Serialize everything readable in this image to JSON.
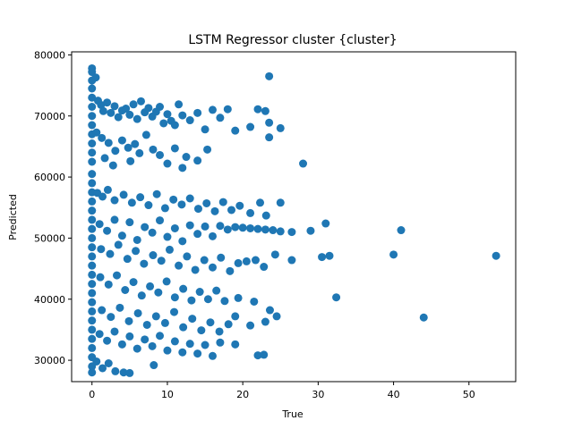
{
  "chart_data": {
    "type": "scatter",
    "title": "LSTM Regressor cluster {cluster}",
    "xlabel": "True",
    "ylabel": "Predicted",
    "xlim": [
      -2.7,
      56.2
    ],
    "ylim": [
      26500,
      80500
    ],
    "xticks": [
      0,
      10,
      20,
      30,
      40,
      50
    ],
    "yticks": [
      30000,
      40000,
      50000,
      60000,
      70000,
      80000
    ],
    "xtick_labels": [
      "0",
      "10",
      "20",
      "30",
      "40",
      "50"
    ],
    "ytick_labels": [
      "30000",
      "40000",
      "50000",
      "60000",
      "70000",
      "80000"
    ],
    "grid": false,
    "legend": false,
    "marker_color": "#1f77b4",
    "series": [
      {
        "points": [
          [
            0,
            77800
          ],
          [
            0,
            77200
          ],
          [
            0,
            75800
          ],
          [
            0,
            74500
          ],
          [
            0,
            73000
          ],
          [
            0,
            71500
          ],
          [
            0,
            70000
          ],
          [
            0,
            68500
          ],
          [
            0,
            67000
          ],
          [
            0,
            65500
          ],
          [
            0,
            64000
          ],
          [
            0,
            62500
          ],
          [
            0,
            60500
          ],
          [
            0,
            59000
          ],
          [
            0,
            57500
          ],
          [
            0,
            56000
          ],
          [
            0,
            54500
          ],
          [
            0,
            53000
          ],
          [
            0,
            51500
          ],
          [
            0,
            50000
          ],
          [
            0,
            48500
          ],
          [
            0,
            47000
          ],
          [
            0,
            45500
          ],
          [
            0,
            44000
          ],
          [
            0,
            42500
          ],
          [
            0,
            41000
          ],
          [
            0,
            39500
          ],
          [
            0,
            38000
          ],
          [
            0,
            36500
          ],
          [
            0,
            35000
          ],
          [
            0,
            33500
          ],
          [
            0,
            32000
          ],
          [
            0,
            30500
          ],
          [
            0,
            29000
          ],
          [
            0,
            28000
          ],
          [
            0.5,
            76300
          ],
          [
            0.8,
            72500
          ],
          [
            1.2,
            71800
          ],
          [
            1.5,
            70800
          ],
          [
            2,
            72200
          ],
          [
            2.5,
            70500
          ],
          [
            3,
            71600
          ],
          [
            3.5,
            69800
          ],
          [
            4,
            70900
          ],
          [
            4.5,
            71200
          ],
          [
            5,
            70200
          ],
          [
            5.5,
            71900
          ],
          [
            6,
            69500
          ],
          [
            6.5,
            72400
          ],
          [
            7,
            70600
          ],
          [
            7.5,
            71300
          ],
          [
            8,
            69900
          ],
          [
            8.5,
            70700
          ],
          [
            9,
            71500
          ],
          [
            9.5,
            68800
          ],
          [
            10,
            70300
          ],
          [
            10.5,
            69200
          ],
          [
            11,
            68500
          ],
          [
            11.5,
            71900
          ],
          [
            12,
            70100
          ],
          [
            13,
            69300
          ],
          [
            14,
            70500
          ],
          [
            15,
            67800
          ],
          [
            16,
            71000
          ],
          [
            17,
            69700
          ],
          [
            18,
            71100
          ],
          [
            19,
            67600
          ],
          [
            21,
            68200
          ],
          [
            22,
            71100
          ],
          [
            23,
            70800
          ],
          [
            23.5,
            76500
          ],
          [
            23.5,
            68900
          ],
          [
            23.5,
            66500
          ],
          [
            25,
            68000
          ],
          [
            0.6,
            67300
          ],
          [
            1.3,
            66400
          ],
          [
            2.2,
            65600
          ],
          [
            3.1,
            64300
          ],
          [
            4,
            66000
          ],
          [
            4.8,
            64800
          ],
          [
            5.7,
            65400
          ],
          [
            6.3,
            63900
          ],
          [
            7.2,
            66900
          ],
          [
            8.1,
            64500
          ],
          [
            9,
            63600
          ],
          [
            10,
            62200
          ],
          [
            11,
            64700
          ],
          [
            12,
            61500
          ],
          [
            12.5,
            63300
          ],
          [
            14,
            62700
          ],
          [
            15.3,
            64500
          ],
          [
            1.7,
            63100
          ],
          [
            2.8,
            61900
          ],
          [
            5.1,
            62600
          ],
          [
            28,
            62200
          ],
          [
            0.7,
            57400
          ],
          [
            1.4,
            56800
          ],
          [
            2.1,
            57900
          ],
          [
            3,
            56200
          ],
          [
            4.2,
            57100
          ],
          [
            5.3,
            55800
          ],
          [
            6.4,
            56700
          ],
          [
            7.5,
            55400
          ],
          [
            8.6,
            57200
          ],
          [
            9.7,
            54900
          ],
          [
            10.8,
            56300
          ],
          [
            11.9,
            55500
          ],
          [
            13,
            56500
          ],
          [
            14.1,
            54800
          ],
          [
            15.2,
            55700
          ],
          [
            16.3,
            54400
          ],
          [
            17.4,
            55900
          ],
          [
            18.5,
            54600
          ],
          [
            19.6,
            55300
          ],
          [
            21,
            54100
          ],
          [
            22.3,
            55800
          ],
          [
            23.1,
            53700
          ],
          [
            25,
            55800
          ],
          [
            1,
            52300
          ],
          [
            2,
            51200
          ],
          [
            3,
            53000
          ],
          [
            4,
            50400
          ],
          [
            5,
            52600
          ],
          [
            6,
            49700
          ],
          [
            7,
            51800
          ],
          [
            8,
            50900
          ],
          [
            9,
            52900
          ],
          [
            10,
            50200
          ],
          [
            11,
            51600
          ],
          [
            12,
            49500
          ],
          [
            13,
            52100
          ],
          [
            14,
            50700
          ],
          [
            15,
            51900
          ],
          [
            16,
            50300
          ],
          [
            17,
            52000
          ],
          [
            18,
            51400
          ],
          [
            19,
            51800
          ],
          [
            20,
            51700
          ],
          [
            21,
            51600
          ],
          [
            22,
            51500
          ],
          [
            23,
            51400
          ],
          [
            24,
            51300
          ],
          [
            25,
            51100
          ],
          [
            26.5,
            51000
          ],
          [
            29,
            51200
          ],
          [
            31,
            52400
          ],
          [
            41,
            51300
          ],
          [
            1.2,
            48200
          ],
          [
            2.4,
            47400
          ],
          [
            3.5,
            48900
          ],
          [
            4.7,
            46600
          ],
          [
            5.8,
            47900
          ],
          [
            6.9,
            45800
          ],
          [
            8.1,
            47200
          ],
          [
            9.2,
            46300
          ],
          [
            10.3,
            48100
          ],
          [
            11.5,
            45500
          ],
          [
            12.6,
            47000
          ],
          [
            13.7,
            44800
          ],
          [
            14.9,
            46400
          ],
          [
            16,
            45200
          ],
          [
            17.1,
            46800
          ],
          [
            18.3,
            44600
          ],
          [
            19.4,
            45900
          ],
          [
            20.5,
            46200
          ],
          [
            21.7,
            46400
          ],
          [
            22.8,
            45300
          ],
          [
            24.3,
            47300
          ],
          [
            26.5,
            46400
          ],
          [
            30.5,
            46900
          ],
          [
            31.5,
            47100
          ],
          [
            40,
            47300
          ],
          [
            53.6,
            47100
          ],
          [
            1.1,
            43600
          ],
          [
            2.2,
            42400
          ],
          [
            3.3,
            43900
          ],
          [
            4.4,
            41500
          ],
          [
            5.5,
            42800
          ],
          [
            6.6,
            40600
          ],
          [
            7.7,
            42100
          ],
          [
            8.8,
            41100
          ],
          [
            9.9,
            42900
          ],
          [
            11,
            40300
          ],
          [
            12.1,
            41700
          ],
          [
            13.2,
            39800
          ],
          [
            14.3,
            41200
          ],
          [
            15.4,
            40000
          ],
          [
            16.5,
            41400
          ],
          [
            17.6,
            39700
          ],
          [
            19.4,
            40200
          ],
          [
            21.5,
            39600
          ],
          [
            32.4,
            40300
          ],
          [
            1.3,
            38200
          ],
          [
            2.5,
            37100
          ],
          [
            3.7,
            38600
          ],
          [
            4.9,
            36400
          ],
          [
            6.1,
            37700
          ],
          [
            7.3,
            35800
          ],
          [
            8.5,
            37200
          ],
          [
            9.7,
            36100
          ],
          [
            10.9,
            37900
          ],
          [
            12.1,
            35400
          ],
          [
            13.3,
            36800
          ],
          [
            14.5,
            34900
          ],
          [
            15.7,
            36200
          ],
          [
            16.9,
            34700
          ],
          [
            18.1,
            35900
          ],
          [
            19,
            37200
          ],
          [
            21,
            35700
          ],
          [
            23,
            36300
          ],
          [
            23.6,
            38200
          ],
          [
            24.5,
            37200
          ],
          [
            44,
            37000
          ],
          [
            1,
            34300
          ],
          [
            2,
            33200
          ],
          [
            3,
            34700
          ],
          [
            4,
            32600
          ],
          [
            5,
            33900
          ],
          [
            6,
            31900
          ],
          [
            7,
            33400
          ],
          [
            8,
            32300
          ],
          [
            9,
            34000
          ],
          [
            10,
            31600
          ],
          [
            11,
            33100
          ],
          [
            12,
            31300
          ],
          [
            13,
            32700
          ],
          [
            14,
            31100
          ],
          [
            15,
            32500
          ],
          [
            16,
            30700
          ],
          [
            17,
            32900
          ],
          [
            19,
            32600
          ],
          [
            22,
            30800
          ],
          [
            22.8,
            30900
          ],
          [
            0.6,
            29800
          ],
          [
            1.4,
            28700
          ],
          [
            2.2,
            29500
          ],
          [
            3.1,
            28200
          ],
          [
            4.2,
            28000
          ],
          [
            5,
            27900
          ],
          [
            8.2,
            29200
          ]
        ]
      }
    ]
  }
}
